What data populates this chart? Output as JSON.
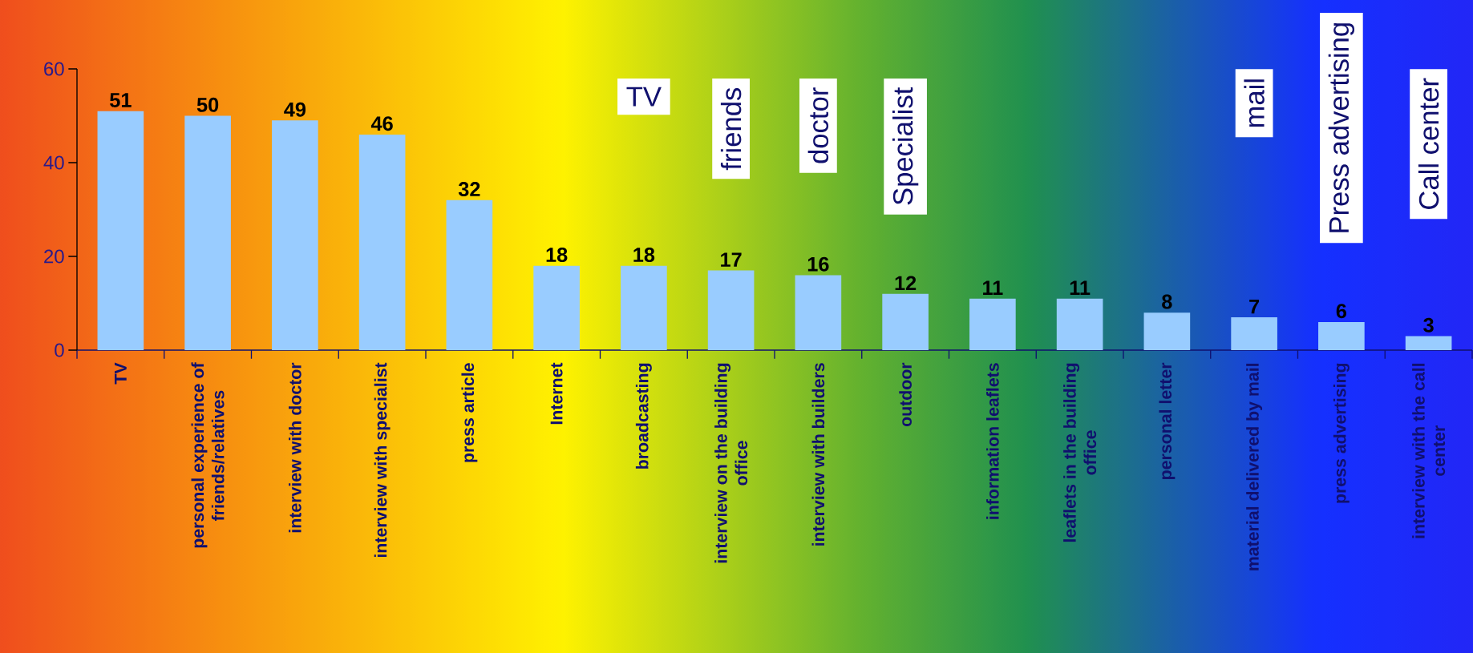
{
  "chart_data": {
    "type": "bar",
    "categories": [
      "TV",
      "personal experience of friends/relatives",
      "interview with doctor",
      "interview with specialist",
      "press article",
      "Internet",
      "broadcasting",
      "interview on the building office",
      "interview with builders",
      "outdoor",
      "information leaflets",
      "leaflets in the building office",
      "personal letter",
      "material delivered by mail",
      "press advertising",
      "interview with the call center"
    ],
    "values": [
      51,
      50,
      49,
      46,
      32,
      18,
      18,
      17,
      16,
      12,
      11,
      11,
      8,
      7,
      6,
      3
    ],
    "color": "#99ccff",
    "ylim": [
      0,
      60
    ],
    "yticks": [
      0,
      20,
      40,
      60
    ],
    "data_labels": true,
    "annotations": [
      "TV",
      "friends",
      "doctor",
      "Specialist",
      "mail",
      "Press advertising",
      "Call center"
    ]
  }
}
